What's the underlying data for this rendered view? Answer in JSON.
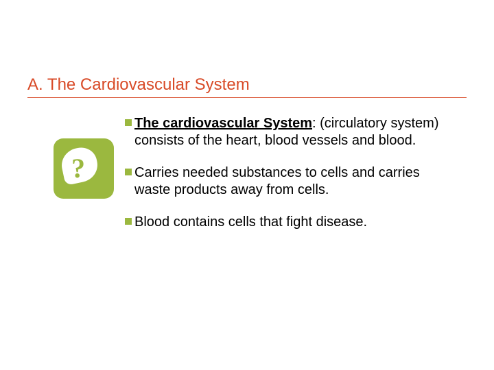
{
  "title": "A. The Cardiovascular System",
  "accent_color": "#d84a27",
  "bullet_color": "#9bb83f",
  "icon_bg": "#9bb83f",
  "background_color": "#ffffff",
  "text_color": "#000000",
  "title_fontsize": 24,
  "body_fontsize": 20,
  "icon_glyph": "?",
  "bullets": [
    {
      "term": "The cardiovascular System",
      "rest": ": (circulatory system) consists of the heart, blood vessels and blood."
    },
    {
      "term": "",
      "rest": "Carries needed substances to cells and carries waste products away from cells."
    },
    {
      "term": "",
      "rest": "Blood contains cells that fight disease."
    }
  ]
}
